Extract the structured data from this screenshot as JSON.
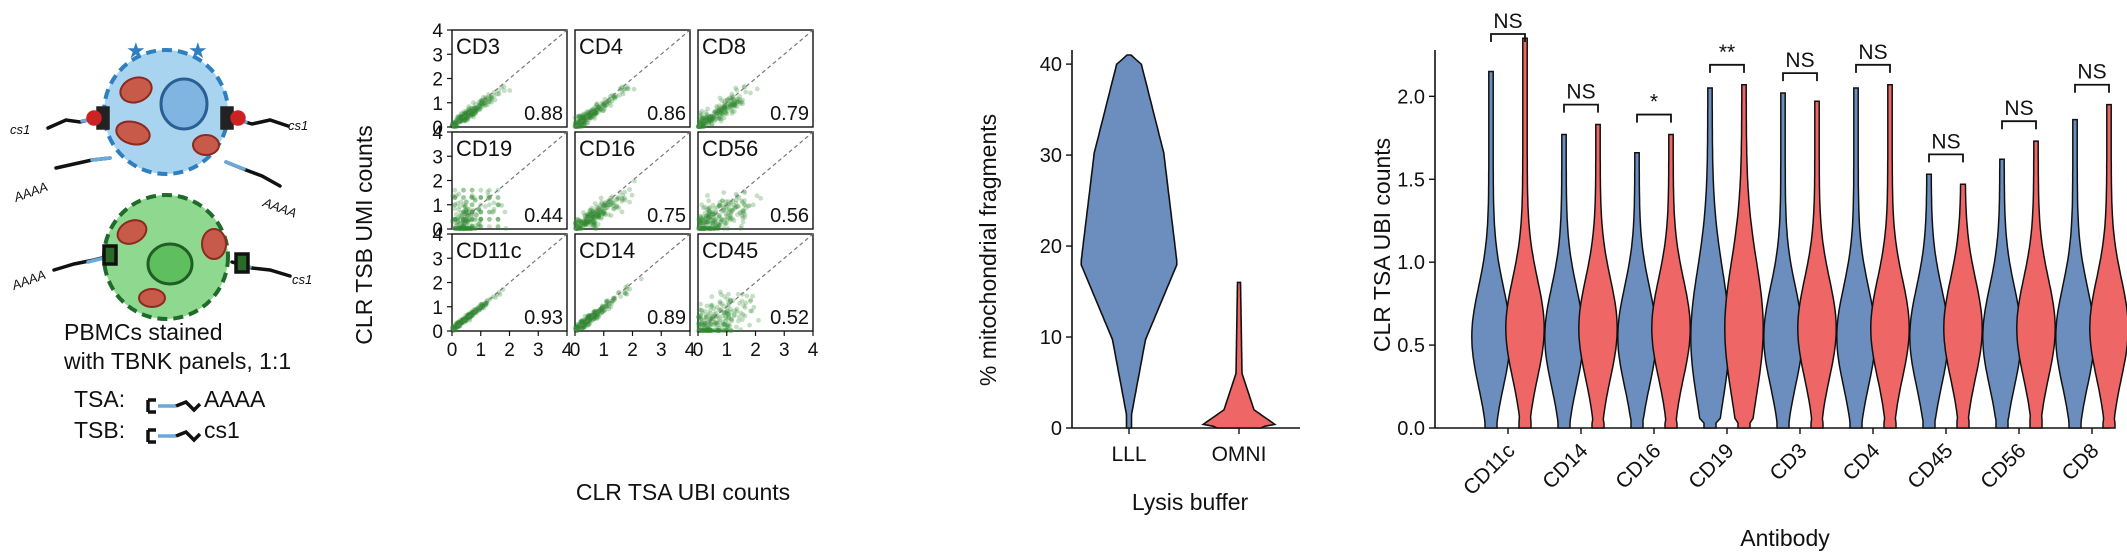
{
  "schematic": {
    "cs1_left_top": "cs1",
    "cs1_right_top": "cs1",
    "aaaa_left_top": "AAAA",
    "aaaa_right_top": "AAAA",
    "aaaa_left_bottom": "AAAA",
    "cs1_right_bottom": "cs1",
    "caption_line1": "PBMCs stained",
    "caption_line2": "with TBNK panels, 1:1",
    "legend_tsa_label": "TSA:",
    "legend_tsa_seq": "AAAA",
    "legend_tsb_label": "TSB:",
    "legend_tsb_seq": "cs1",
    "colors": {
      "tsa_cell": "#a8d4f0",
      "tsb_cell": "#8fd88f",
      "mito": "#c85a4a"
    }
  },
  "chart_data": [
    {
      "type": "scatter",
      "title": "",
      "xlabel": "CLR TSA UBI counts",
      "ylabel": "CLR TSB UMI counts",
      "xlim": [
        0,
        4
      ],
      "ylim": [
        0,
        4
      ],
      "xticks": [
        "0",
        "1",
        "2",
        "3",
        "4"
      ],
      "yticks": [
        "0",
        "1",
        "2",
        "3",
        "4"
      ],
      "point_color": "#2e8b2e",
      "panels": [
        {
          "label": "CD3",
          "value": "0.88"
        },
        {
          "label": "CD4",
          "value": "0.86"
        },
        {
          "label": "CD8",
          "value": "0.79"
        },
        {
          "label": "CD19",
          "value": "0.44"
        },
        {
          "label": "CD16",
          "value": "0.75"
        },
        {
          "label": "CD56",
          "value": "0.56"
        },
        {
          "label": "CD11c",
          "value": "0.93"
        },
        {
          "label": "CD14",
          "value": "0.89"
        },
        {
          "label": "CD45",
          "value": "0.52"
        }
      ]
    },
    {
      "type": "violin",
      "xlabel": "Lysis buffer",
      "ylabel": "% mitochondrial fragments",
      "ylim": [
        0,
        41
      ],
      "yticks": [
        "0",
        "10",
        "20",
        "30",
        "40"
      ],
      "categories": [
        "LLL",
        "OMNI"
      ],
      "colors": [
        "#6c8ebf",
        "#ee6666"
      ],
      "ranges": [
        [
          0,
          41
        ],
        [
          0,
          16
        ]
      ]
    },
    {
      "type": "violin",
      "xlabel": "Antibody",
      "ylabel": "CLR TSA UBI counts",
      "ylim": [
        0,
        2.4
      ],
      "yticks": [
        "0.0",
        "0.5",
        "1.0",
        "1.5",
        "2.0"
      ],
      "categories": [
        "CD11c",
        "CD14",
        "CD16",
        "CD19",
        "CD3",
        "CD4",
        "CD45",
        "CD56",
        "CD8"
      ],
      "series": [
        {
          "name": "",
          "color": "#6c8ebf",
          "max": [
            2.15,
            1.77,
            1.66,
            2.05,
            2.02,
            2.05,
            1.53,
            1.62,
            1.86
          ]
        },
        {
          "name": "",
          "color": "#ee6666",
          "max": [
            2.35,
            1.83,
            1.77,
            2.07,
            1.97,
            2.07,
            1.47,
            1.73,
            1.95
          ]
        }
      ],
      "significance": [
        "NS",
        "NS",
        "*",
        "**",
        "NS",
        "NS",
        "NS",
        "NS",
        "NS"
      ]
    }
  ]
}
